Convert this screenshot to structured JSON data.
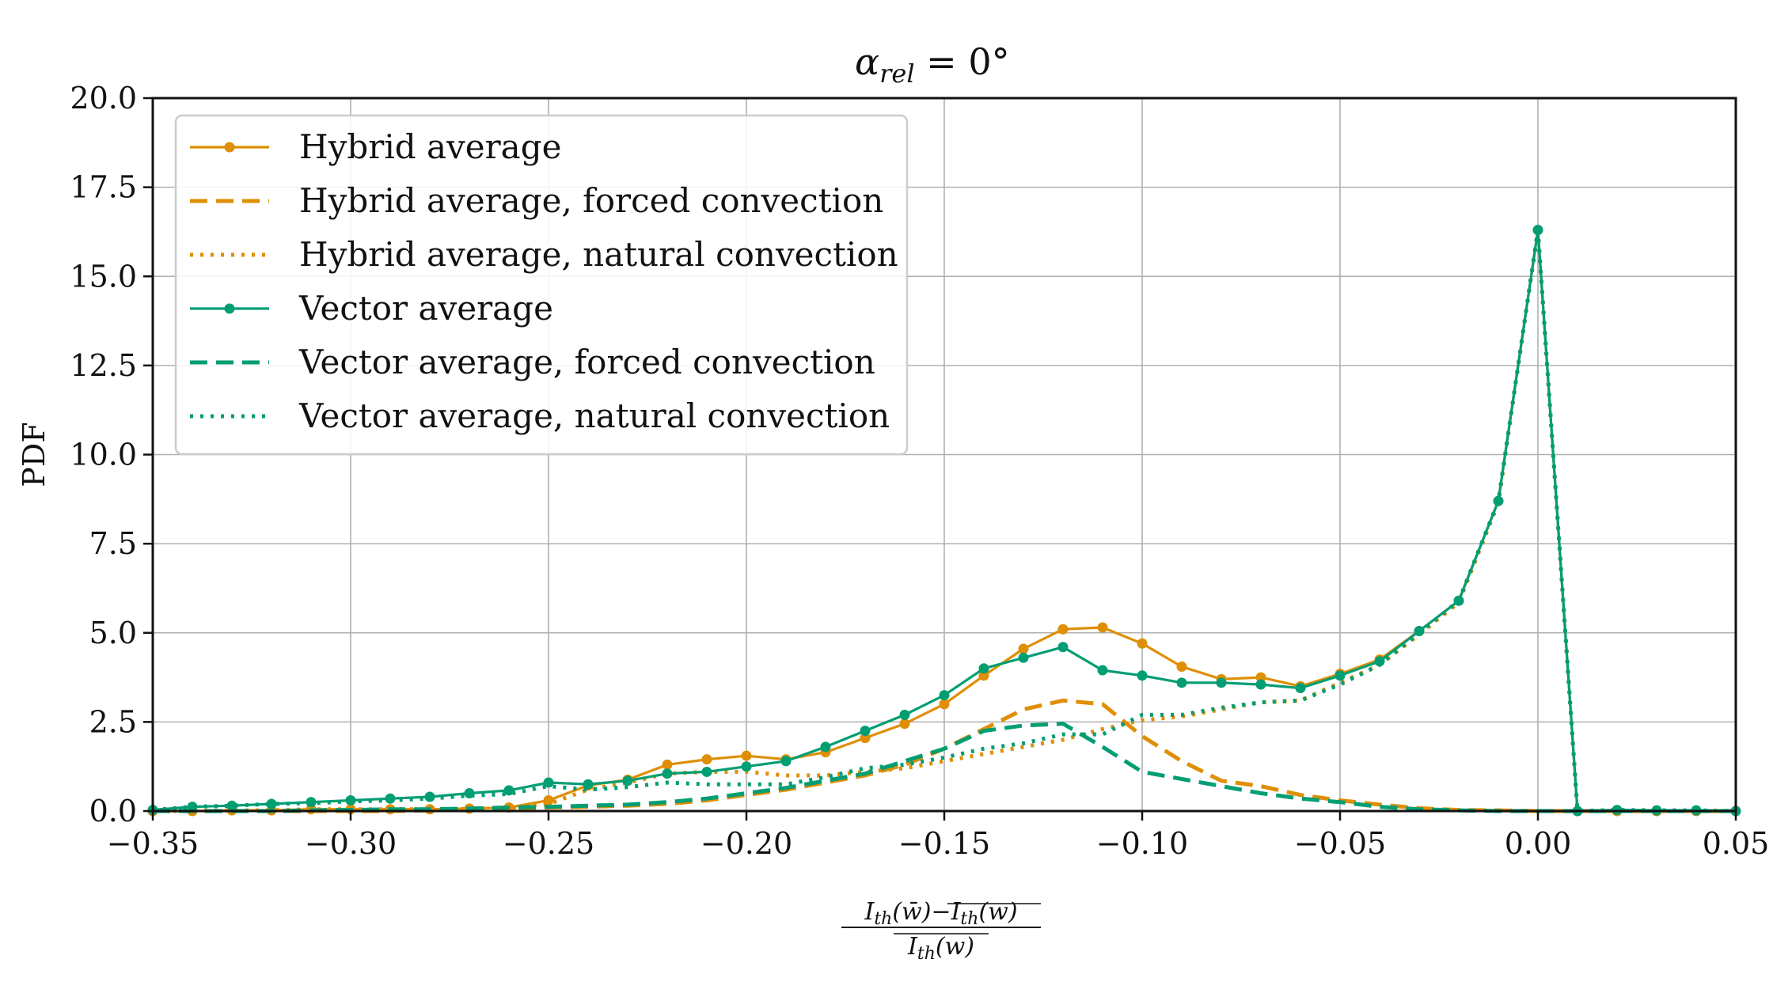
{
  "chart_data": {
    "type": "line",
    "title_main": "α",
    "title_sub": "rel",
    "title_rest": " = 0°",
    "ylabel": "PDF",
    "xlabel_numerator": "I_th(w̄) − I_th(w)‾",
    "xlabel_numerator_parts": [
      "I",
      "th",
      "(w̄)−",
      "I",
      "th",
      "(w)"
    ],
    "xlabel_denominator_parts": [
      "I",
      "th",
      "(w)"
    ],
    "xlim": [
      -0.35,
      0.05
    ],
    "ylim": [
      0,
      20
    ],
    "xticks": [
      -0.35,
      -0.3,
      -0.25,
      -0.2,
      -0.15,
      -0.1,
      -0.05,
      0.0,
      0.05
    ],
    "xtick_labels": [
      "−0.35",
      "−0.30",
      "−0.25",
      "−0.20",
      "−0.15",
      "−0.10",
      "−0.05",
      "0.00",
      "0.05"
    ],
    "yticks": [
      0,
      2.5,
      5,
      7.5,
      10,
      12.5,
      15,
      17.5,
      20
    ],
    "ytick_labels": [
      "0.0",
      "2.5",
      "5.0",
      "7.5",
      "10.0",
      "12.5",
      "15.0",
      "17.5",
      "20.0"
    ],
    "grid": true,
    "legend_position": "top-left",
    "colors": {
      "hybrid": "#DE8F05",
      "vector": "#029E73"
    },
    "x": [
      -0.35,
      -0.34,
      -0.33,
      -0.32,
      -0.31,
      -0.3,
      -0.29,
      -0.28,
      -0.27,
      -0.26,
      -0.25,
      -0.24,
      -0.23,
      -0.22,
      -0.21,
      -0.2,
      -0.19,
      -0.18,
      -0.17,
      -0.16,
      -0.15,
      -0.14,
      -0.13,
      -0.12,
      -0.11,
      -0.1,
      -0.09,
      -0.08,
      -0.07,
      -0.06,
      -0.05,
      -0.04,
      -0.03,
      -0.02,
      -0.01,
      0.0,
      0.01,
      0.02,
      0.03,
      0.04,
      0.05
    ],
    "series": [
      {
        "name": "Hybrid average",
        "color": "#DE8F05",
        "style": "solid-marker",
        "values": [
          0.0,
          0.0,
          0.02,
          0.02,
          0.05,
          0.05,
          0.05,
          0.05,
          0.07,
          0.1,
          0.3,
          0.72,
          0.88,
          1.3,
          1.45,
          1.55,
          1.45,
          1.65,
          2.05,
          2.45,
          3.0,
          3.8,
          4.55,
          5.1,
          5.15,
          4.7,
          4.05,
          3.7,
          3.75,
          3.5,
          3.85,
          4.25,
          5.05,
          5.9,
          8.7,
          16.3,
          0.0,
          0.0,
          0.0,
          0.0,
          0.0
        ]
      },
      {
        "name": "Hybrid average, forced convection",
        "color": "#DE8F05",
        "style": "dashed",
        "values": [
          0.0,
          0.0,
          0.0,
          0.0,
          0.0,
          0.0,
          0.0,
          0.02,
          0.03,
          0.05,
          0.1,
          0.12,
          0.15,
          0.2,
          0.3,
          0.45,
          0.6,
          0.8,
          1.0,
          1.3,
          1.75,
          2.3,
          2.85,
          3.1,
          3.0,
          2.1,
          1.4,
          0.85,
          0.7,
          0.45,
          0.3,
          0.18,
          0.08,
          0.03,
          0.02,
          0.0,
          0.0,
          0.0,
          0.0,
          0.0,
          0.0
        ]
      },
      {
        "name": "Hybrid average, natural convection",
        "color": "#DE8F05",
        "style": "dotted",
        "values": [
          0.0,
          0.0,
          0.02,
          0.02,
          0.05,
          0.05,
          0.05,
          0.05,
          0.06,
          0.08,
          0.2,
          0.6,
          0.8,
          1.05,
          1.1,
          1.1,
          1.0,
          1.0,
          1.1,
          1.2,
          1.4,
          1.6,
          1.8,
          2.0,
          2.3,
          2.55,
          2.65,
          2.85,
          3.05,
          3.1,
          3.6,
          4.1,
          4.95,
          5.85,
          8.65,
          16.3,
          0.0,
          0.0,
          0.0,
          0.0,
          0.0
        ]
      },
      {
        "name": "Vector average",
        "color": "#029E73",
        "style": "solid-marker",
        "values": [
          0.03,
          0.12,
          0.15,
          0.2,
          0.25,
          0.3,
          0.35,
          0.4,
          0.5,
          0.58,
          0.8,
          0.75,
          0.85,
          1.05,
          1.1,
          1.25,
          1.4,
          1.8,
          2.25,
          2.7,
          3.25,
          4.0,
          4.3,
          4.6,
          3.95,
          3.8,
          3.6,
          3.6,
          3.55,
          3.45,
          3.8,
          4.2,
          5.05,
          5.9,
          8.7,
          16.3,
          0.0,
          0.03,
          0.02,
          0.02,
          0.0
        ]
      },
      {
        "name": "Vector average, forced convection",
        "color": "#029E73",
        "style": "dashed",
        "values": [
          0.0,
          0.0,
          0.0,
          0.0,
          0.02,
          0.03,
          0.05,
          0.05,
          0.07,
          0.1,
          0.12,
          0.15,
          0.18,
          0.25,
          0.35,
          0.5,
          0.65,
          0.85,
          1.05,
          1.4,
          1.75,
          2.25,
          2.4,
          2.45,
          1.8,
          1.1,
          0.9,
          0.7,
          0.5,
          0.35,
          0.25,
          0.12,
          0.05,
          0.02,
          0.0,
          0.0,
          0.0,
          0.0,
          0.0,
          0.0,
          0.0
        ]
      },
      {
        "name": "Vector average, natural convection",
        "color": "#029E73",
        "style": "dotted",
        "values": [
          0.03,
          0.12,
          0.15,
          0.2,
          0.22,
          0.27,
          0.3,
          0.35,
          0.43,
          0.48,
          0.7,
          0.6,
          0.67,
          0.8,
          0.75,
          0.75,
          0.75,
          0.95,
          1.2,
          1.3,
          1.5,
          1.75,
          1.9,
          2.15,
          2.15,
          2.7,
          2.7,
          2.9,
          3.05,
          3.1,
          3.55,
          4.1,
          5.0,
          5.9,
          8.7,
          16.3,
          0.0,
          0.03,
          0.02,
          0.02,
          0.0
        ]
      }
    ]
  }
}
